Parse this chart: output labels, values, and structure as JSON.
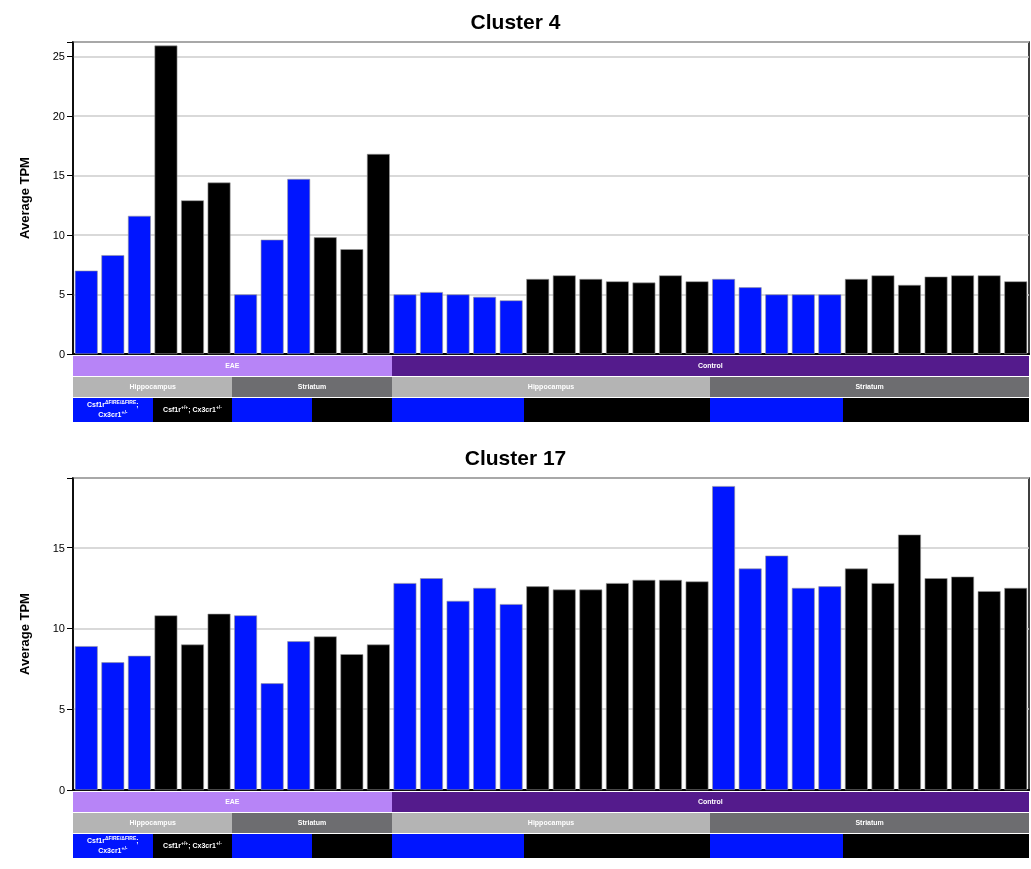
{
  "chart_data": [
    {
      "type": "bar",
      "title": "Cluster 4",
      "ylabel": "Average TPM",
      "categories": [
        null,
        null,
        null,
        null,
        null,
        null,
        null,
        null,
        null,
        null,
        null,
        null,
        null,
        null,
        null,
        null,
        null,
        null,
        null,
        null,
        null,
        null,
        null,
        null,
        null,
        null,
        null,
        null,
        null,
        null,
        null,
        null,
        null,
        null,
        null,
        null
      ],
      "values": [
        7.0,
        8.3,
        11.6,
        25.9,
        12.9,
        14.4,
        5.0,
        9.6,
        14.7,
        9.8,
        8.8,
        16.8,
        5.0,
        5.2,
        5.0,
        4.8,
        4.5,
        6.3,
        6.6,
        6.3,
        6.1,
        6.0,
        6.6,
        6.1,
        6.3,
        5.6,
        5.0,
        5.0,
        5.0,
        6.3,
        6.6,
        5.8,
        6.5,
        6.6,
        6.6,
        6.1
      ],
      "colors": [
        "#0015ff",
        "#0015ff",
        "#0015ff",
        "#000000",
        "#000000",
        "#000000",
        "#0015ff",
        "#0015ff",
        "#0015ff",
        "#000000",
        "#000000",
        "#000000",
        "#0015ff",
        "#0015ff",
        "#0015ff",
        "#0015ff",
        "#0015ff",
        "#000000",
        "#000000",
        "#000000",
        "#000000",
        "#000000",
        "#000000",
        "#000000",
        "#0015ff",
        "#0015ff",
        "#0015ff",
        "#0015ff",
        "#0015ff",
        "#000000",
        "#000000",
        "#000000",
        "#000000",
        "#000000",
        "#000000",
        "#000000"
      ],
      "ylim": [
        0,
        26.2
      ],
      "yticks": [
        0,
        5,
        10,
        15,
        20,
        25
      ],
      "grid": "y",
      "annotations": [
        "EAE",
        "Control",
        "Hippocampus",
        "Striatum",
        "Hippocampus",
        "Striatum",
        "Csf1r$^{ΔFIRE/ΔFIRE}$; Cx3cr1$^{+/-}$",
        "Csf1r$^{+/+}$; Cx3cr1$^{+/-}$"
      ]
    },
    {
      "type": "bar",
      "title": "Cluster 17",
      "ylabel": "Average TPM",
      "categories": [
        null,
        null,
        null,
        null,
        null,
        null,
        null,
        null,
        null,
        null,
        null,
        null,
        null,
        null,
        null,
        null,
        null,
        null,
        null,
        null,
        null,
        null,
        null,
        null,
        null,
        null,
        null,
        null,
        null,
        null,
        null,
        null,
        null,
        null,
        null,
        null
      ],
      "values": [
        8.9,
        7.9,
        8.3,
        10.8,
        9.0,
        10.9,
        10.8,
        6.6,
        9.2,
        9.5,
        8.4,
        9.0,
        12.8,
        13.1,
        11.7,
        12.5,
        11.5,
        12.6,
        12.4,
        12.4,
        12.8,
        13.0,
        13.0,
        12.9,
        18.8,
        13.7,
        14.5,
        12.5,
        12.6,
        13.7,
        12.8,
        15.8,
        13.1,
        13.2,
        12.3,
        12.5
      ],
      "colors": [
        "#0015ff",
        "#0015ff",
        "#0015ff",
        "#000000",
        "#000000",
        "#000000",
        "#0015ff",
        "#0015ff",
        "#0015ff",
        "#000000",
        "#000000",
        "#000000",
        "#0015ff",
        "#0015ff",
        "#0015ff",
        "#0015ff",
        "#0015ff",
        "#000000",
        "#000000",
        "#000000",
        "#000000",
        "#000000",
        "#000000",
        "#000000",
        "#0015ff",
        "#0015ff",
        "#0015ff",
        "#0015ff",
        "#0015ff",
        "#000000",
        "#000000",
        "#000000",
        "#000000",
        "#000000",
        "#000000",
        "#000000"
      ],
      "ylim": [
        0,
        19.3
      ],
      "yticks": [
        0,
        5,
        10,
        15
      ],
      "grid": "y",
      "annotations": [
        "EAE",
        "Control",
        "Hippocampus",
        "Striatum",
        "Hippocampus",
        "Striatum",
        "Csf1r$^{ΔFIRE/ΔFIRE}$; Cx3cr1$^{+/-}$",
        "Csf1r$^{+/+}$; Cx3cr1$^{+/-}$"
      ]
    }
  ]
}
